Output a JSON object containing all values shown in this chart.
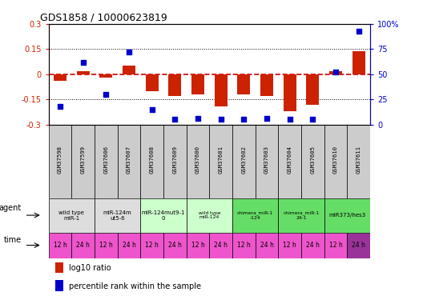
{
  "title": "GDS1858 / 10000623819",
  "samples": [
    "GSM37598",
    "GSM37599",
    "GSM37606",
    "GSM37607",
    "GSM37608",
    "GSM37609",
    "GSM37600",
    "GSM37601",
    "GSM37602",
    "GSM37603",
    "GSM37604",
    "GSM37605",
    "GSM37610",
    "GSM37611"
  ],
  "log10_ratio": [
    -0.04,
    0.02,
    -0.02,
    0.05,
    -0.1,
    -0.13,
    -0.12,
    -0.19,
    -0.12,
    -0.13,
    -0.22,
    -0.18,
    0.02,
    0.14
  ],
  "percentile_rank": [
    18,
    62,
    30,
    72,
    15,
    5,
    6,
    5,
    5,
    6,
    5,
    5,
    52,
    93
  ],
  "ylim_left": [
    -0.3,
    0.3
  ],
  "ylim_right": [
    0,
    100
  ],
  "yticks_left": [
    -0.3,
    -0.15,
    0,
    0.15,
    0.3
  ],
  "yticks_right": [
    0,
    25,
    50,
    75,
    100
  ],
  "bar_color": "#cc2200",
  "dot_color": "#0000cc",
  "agent_groups": [
    {
      "label": "wild type\nmiR-1",
      "start": 0,
      "end": 2,
      "color": "#dddddd"
    },
    {
      "label": "miR-124m\nut5-6",
      "start": 2,
      "end": 4,
      "color": "#dddddd"
    },
    {
      "label": "miR-124mut9-1\n0",
      "start": 4,
      "end": 6,
      "color": "#ccffcc"
    },
    {
      "label": "wild type\nmiR-124",
      "start": 6,
      "end": 8,
      "color": "#ccffcc"
    },
    {
      "label": "chimera_miR-1\n-124",
      "start": 8,
      "end": 10,
      "color": "#66dd66"
    },
    {
      "label": "chimera_miR-1\n24-1",
      "start": 10,
      "end": 12,
      "color": "#66dd66"
    },
    {
      "label": "miR373/hes3",
      "start": 12,
      "end": 14,
      "color": "#66dd66"
    }
  ],
  "time_labels": [
    "12 h",
    "24 h",
    "12 h",
    "24 h",
    "12 h",
    "24 h",
    "12 h",
    "24 h",
    "12 h",
    "24 h",
    "12 h",
    "24 h",
    "12 h",
    "24 h"
  ],
  "time_color": "#ee55cc",
  "time_color_last": "#993399",
  "hline_color": "#cc0000",
  "hline_style": "--",
  "dotline_color": "black",
  "dotline_style": ":",
  "sample_box_color": "#cccccc"
}
